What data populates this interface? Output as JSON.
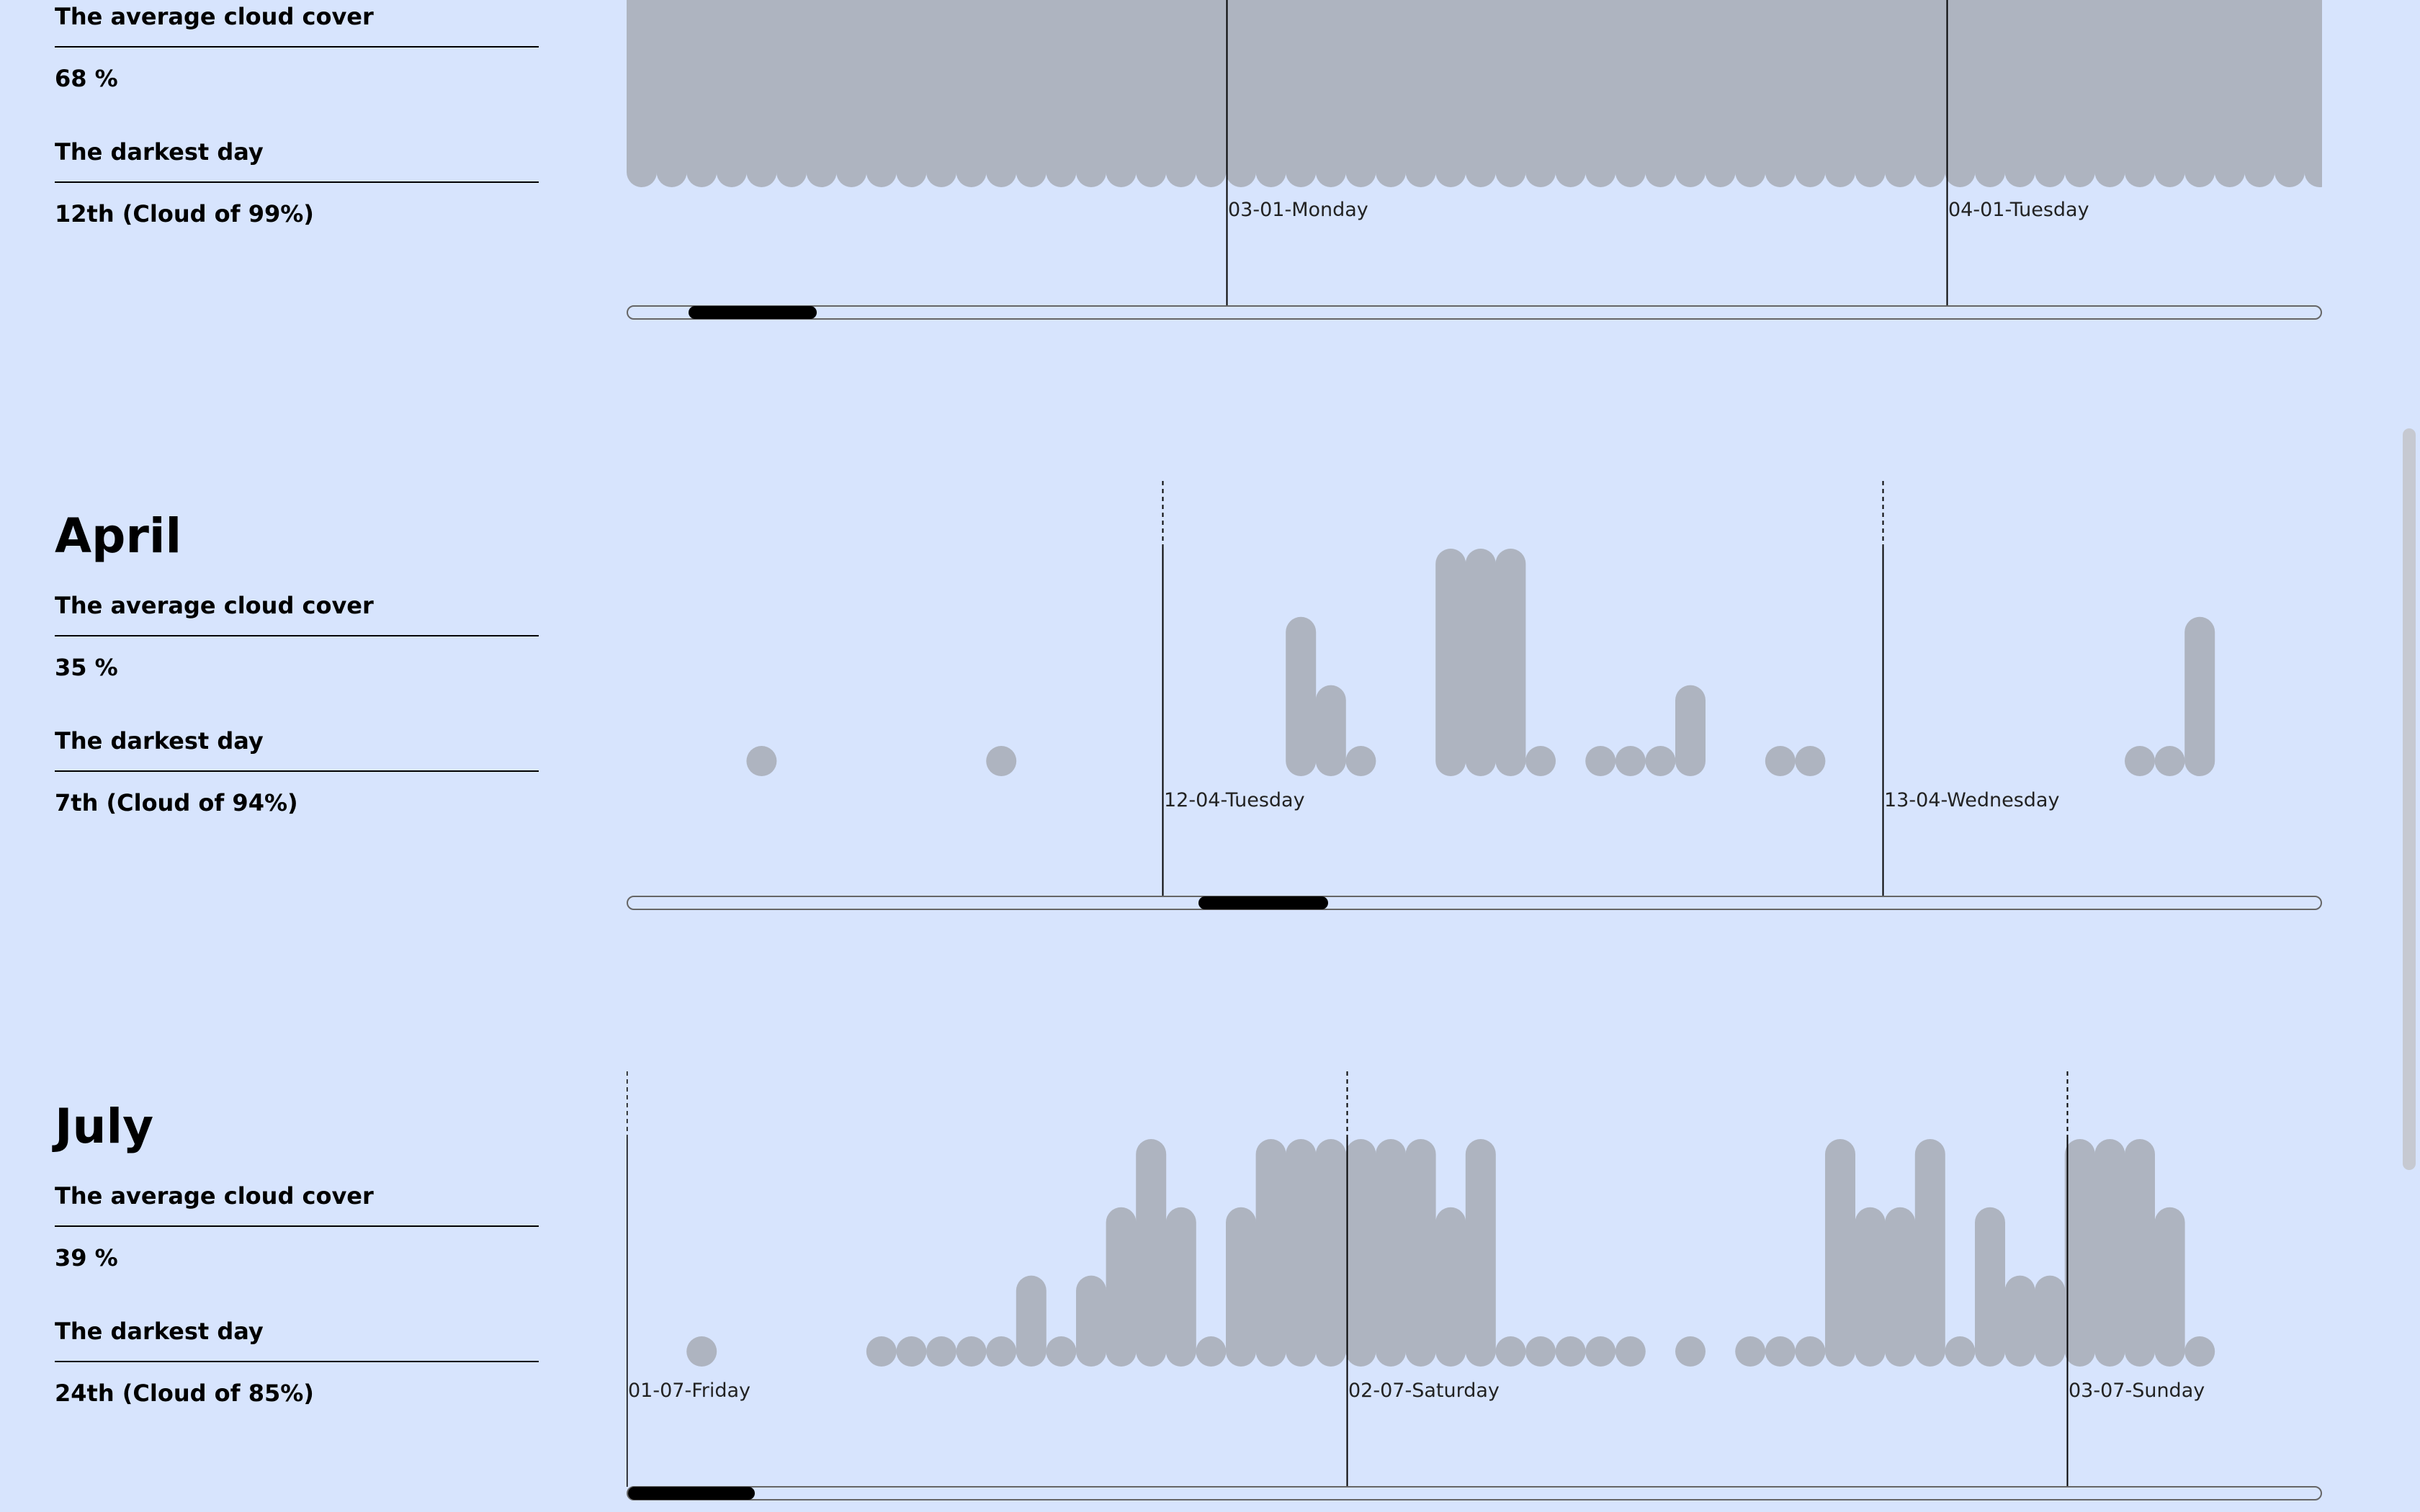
{
  "colors": {
    "background": "#d7e4fd",
    "bar": "#aeb4c0",
    "line": "#000000"
  },
  "months": [
    {
      "id": "march",
      "title": "",
      "avg_label": "The average cloud cover",
      "avg_value": "68 %",
      "dark_label": "The darkest day",
      "dark_value": "12th (Cloud of 99%)",
      "scroll_fraction": 0.07
    },
    {
      "id": "april",
      "title": "April",
      "avg_label": "The average cloud cover",
      "avg_value": "35 %",
      "dark_label": "The darkest day",
      "dark_value": "7th (Cloud of 94%)",
      "scroll_fraction": 0.4
    },
    {
      "id": "july",
      "title": "July",
      "avg_label": "The average cloud cover",
      "avg_value": "39 %",
      "dark_label": "The darkest day",
      "dark_value": "24th (Cloud of 85%)",
      "scroll_fraction": 0.0
    }
  ],
  "chart_data": [
    {
      "type": "bar",
      "title": "",
      "xlabel": "",
      "ylabel": "",
      "ylim": [
        0,
        100
      ],
      "x_tick_labels": [
        "03-01-Monday",
        "04-01-Tuesday"
      ],
      "values": [
        100,
        100,
        100,
        100,
        100,
        100,
        100,
        100,
        100,
        100,
        100,
        100,
        100,
        100,
        100,
        100,
        100,
        100,
        100,
        100,
        100,
        100,
        100,
        100,
        100,
        100,
        100,
        100,
        100,
        100,
        100,
        100,
        100,
        100,
        100,
        100,
        100,
        100,
        100,
        100,
        100,
        100,
        100,
        100,
        100,
        100,
        100,
        100,
        100,
        100,
        100,
        100,
        100,
        100,
        100,
        100,
        100
      ]
    },
    {
      "type": "bar",
      "title": "",
      "xlabel": "",
      "ylabel": "",
      "ylim": [
        0,
        100
      ],
      "x_tick_labels": [
        "12-04-Tuesday",
        "13-04-Wednesday"
      ],
      "values": [
        0,
        0,
        0,
        0,
        10,
        0,
        0,
        0,
        0,
        0,
        0,
        0,
        10,
        0,
        0,
        0,
        0,
        0,
        0,
        0,
        0,
        0,
        70,
        40,
        10,
        0,
        0,
        100,
        100,
        100,
        10,
        0,
        10,
        10,
        10,
        40,
        0,
        0,
        10,
        10,
        0,
        0,
        0,
        0,
        0,
        0,
        0,
        0,
        0,
        0,
        10,
        10,
        70,
        0,
        0,
        0
      ]
    },
    {
      "type": "bar",
      "title": "",
      "xlabel": "",
      "ylabel": "",
      "ylim": [
        0,
        100
      ],
      "x_tick_labels": [
        "01-07-Friday",
        "02-07-Saturday",
        "03-07-Sunday"
      ],
      "values": [
        0,
        0,
        10,
        0,
        0,
        0,
        0,
        0,
        10,
        10,
        10,
        10,
        10,
        40,
        10,
        40,
        70,
        100,
        70,
        10,
        70,
        100,
        100,
        100,
        100,
        100,
        100,
        70,
        100,
        10,
        10,
        10,
        10,
        10,
        0,
        10,
        0,
        10,
        10,
        10,
        100,
        70,
        70,
        100,
        10,
        70,
        40,
        40,
        100,
        100,
        100,
        70,
        10,
        0,
        0,
        0
      ]
    }
  ]
}
